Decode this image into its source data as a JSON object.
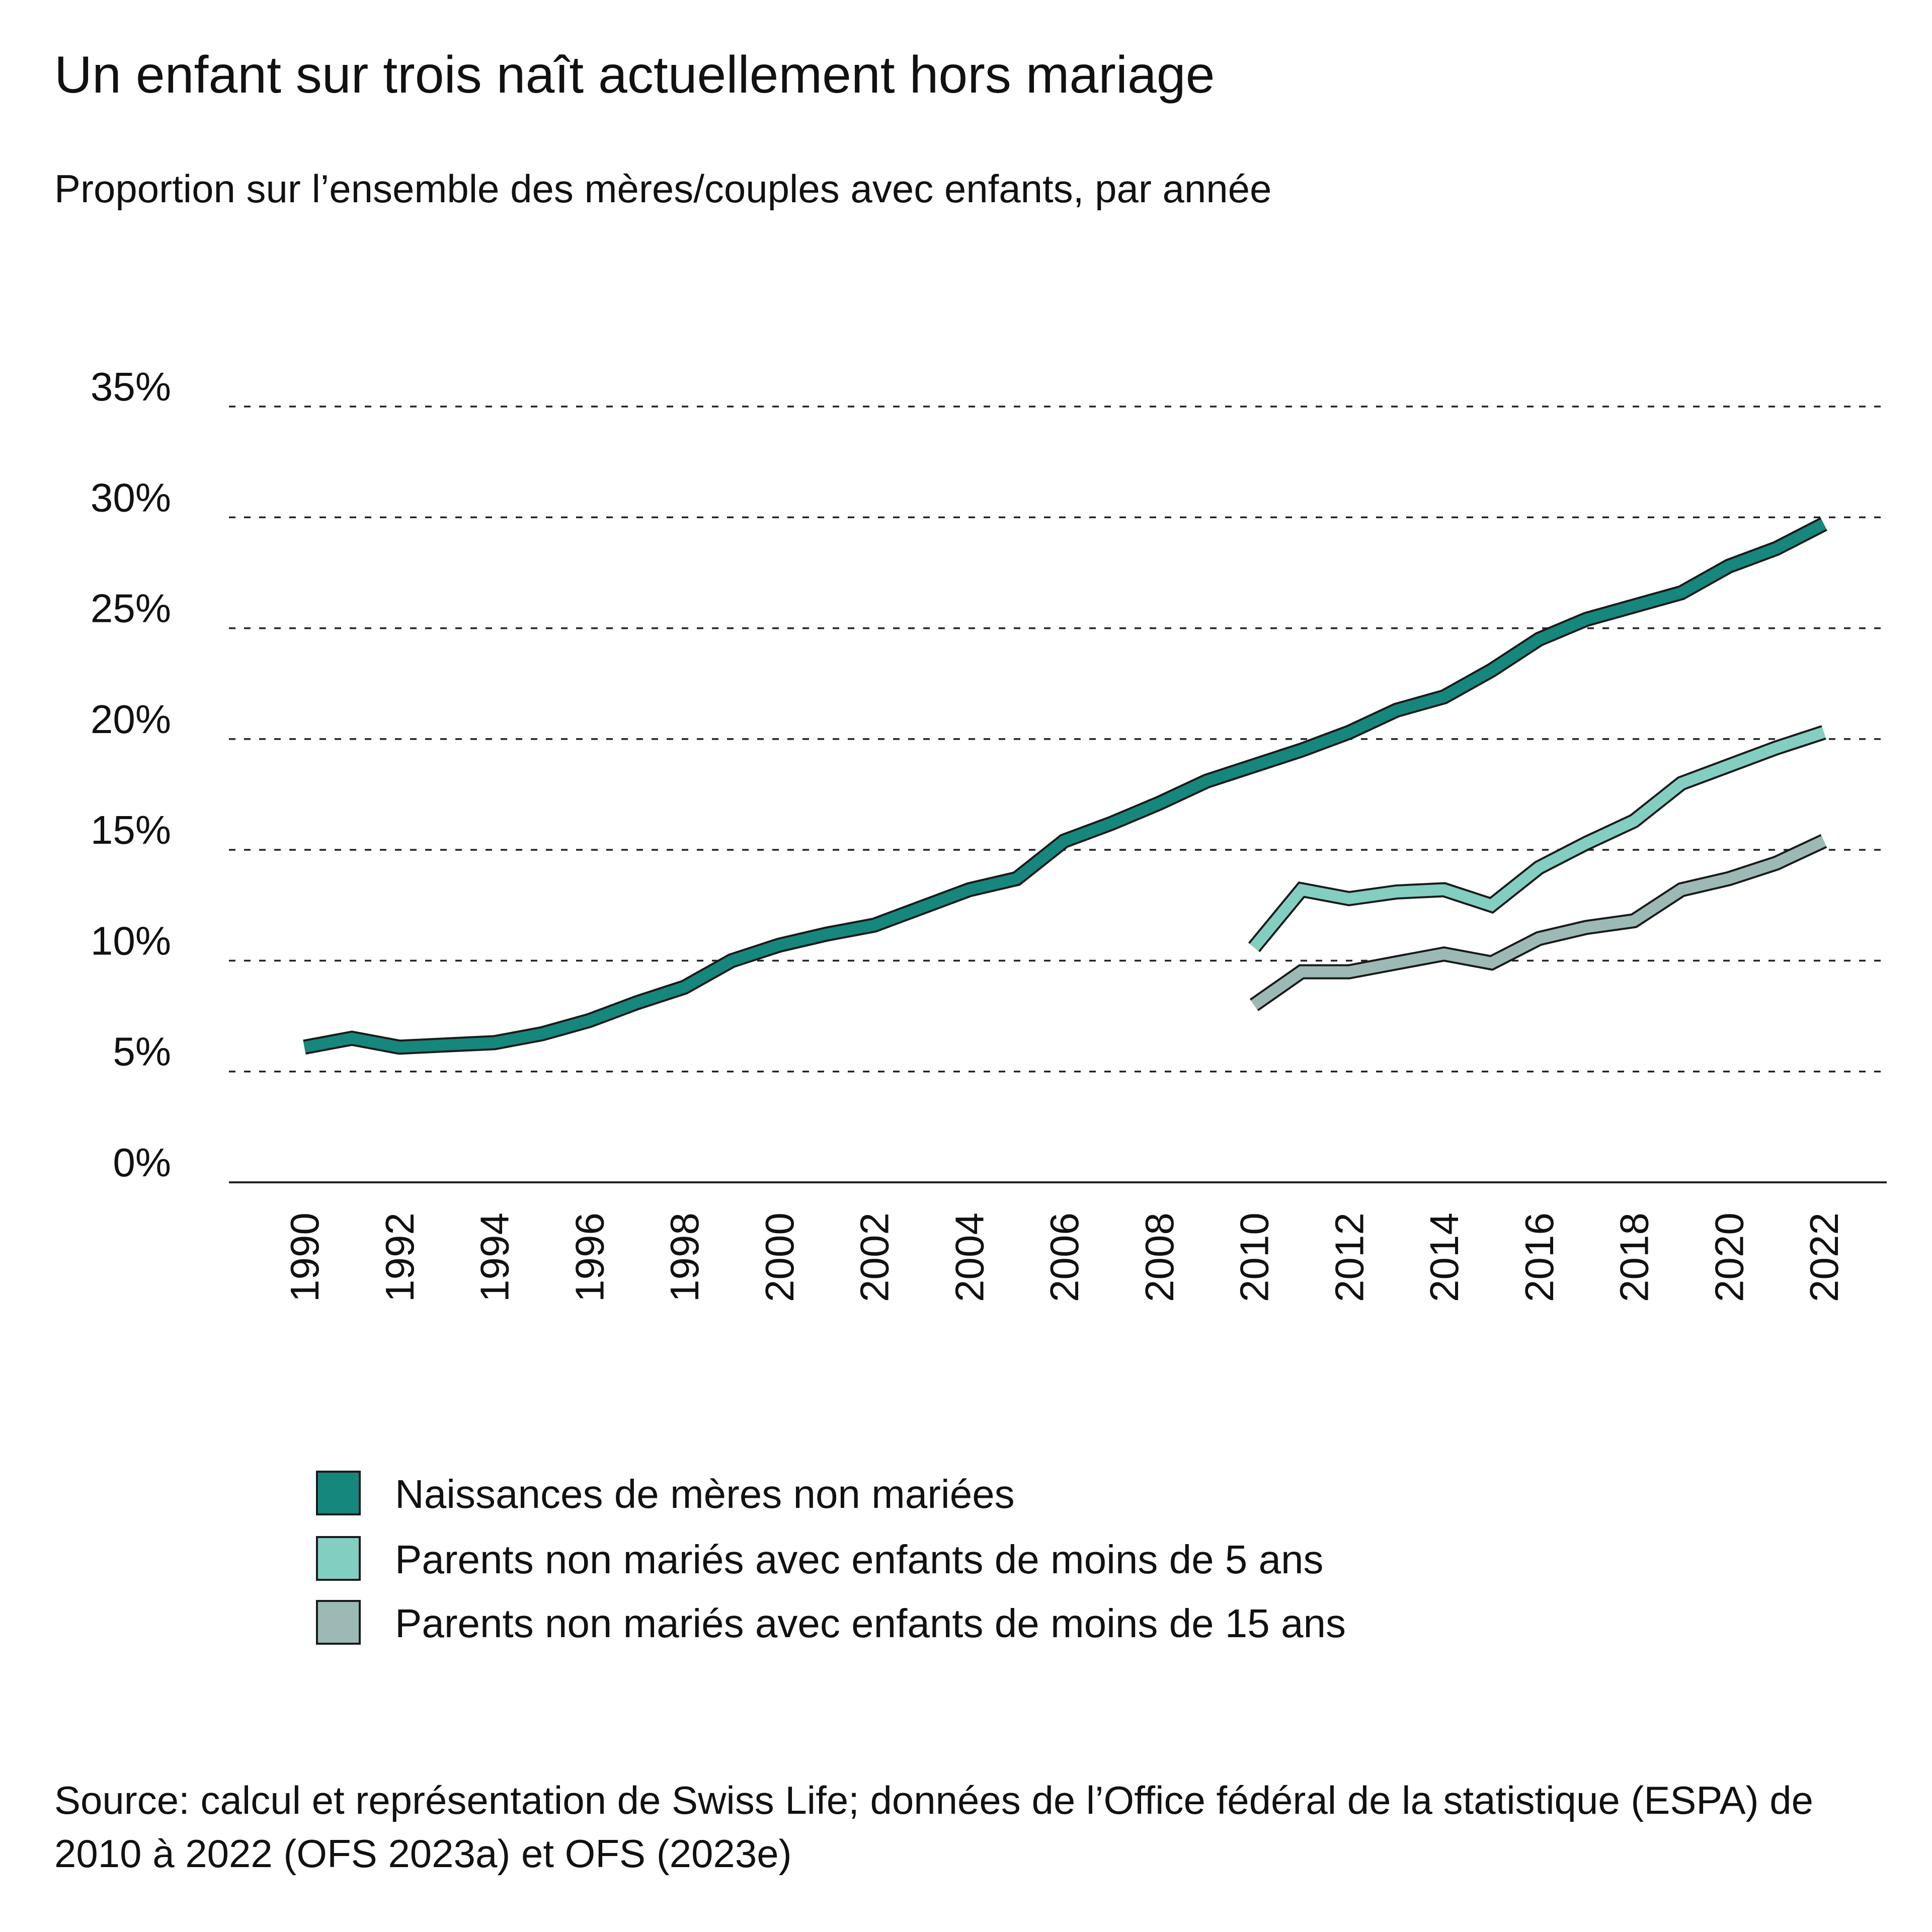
{
  "title": "Un enfant sur trois naît actuellement hors mariage",
  "subtitle": "Proportion sur l’ensemble des mères/couples avec enfants, par année",
  "source": "Source: calcul et représentation de Swiss Life; données de l’Office fédéral de la statistique (ESPA) de 2010 à 2022 (OFS 2023a) et OFS (2023e)",
  "colors": {
    "grid": "#222222",
    "axis": "#222222",
    "outline": "#1a1a1a"
  },
  "chart_data": {
    "type": "line",
    "title": "Un enfant sur trois naît actuellement hors mariage",
    "subtitle": "Proportion sur l’ensemble des mères/couples avec enfants, par année",
    "xlabel": "",
    "ylabel": "",
    "xlim": [
      1990,
      2022
    ],
    "ylim": [
      0,
      35
    ],
    "yticks": [
      0,
      5,
      10,
      15,
      20,
      25,
      30,
      35
    ],
    "ytick_labels": [
      "0%",
      "5%",
      "10%",
      "15%",
      "20%",
      "25%",
      "30%",
      "35%"
    ],
    "xticks": [
      1990,
      1992,
      1994,
      1996,
      1998,
      2000,
      2002,
      2004,
      2006,
      2008,
      2010,
      2012,
      2014,
      2016,
      2018,
      2020,
      2022
    ],
    "xtick_labels": [
      "1990",
      "1992",
      "1994",
      "1996",
      "1998",
      "2000",
      "2002",
      "2004",
      "2006",
      "2008",
      "2010",
      "2012",
      "2014",
      "2016",
      "2018",
      "2020",
      "2022"
    ],
    "grid": "horizontal dashed",
    "legend_position": "bottom",
    "series": [
      {
        "name": "Naissances de mères non mariées",
        "color": "#16877c",
        "x": [
          1990,
          1991,
          1992,
          1993,
          1994,
          1995,
          1996,
          1997,
          1998,
          1999,
          2000,
          2001,
          2002,
          2003,
          2004,
          2005,
          2006,
          2007,
          2008,
          2009,
          2010,
          2011,
          2012,
          2013,
          2014,
          2015,
          2016,
          2017,
          2018,
          2019,
          2020,
          2021,
          2022
        ],
        "values": [
          6.1,
          6.5,
          6.1,
          6.2,
          6.3,
          6.7,
          7.3,
          8.1,
          8.8,
          10.0,
          10.7,
          11.2,
          11.6,
          12.4,
          13.2,
          13.7,
          15.4,
          16.2,
          17.1,
          18.1,
          18.8,
          19.5,
          20.3,
          21.3,
          21.9,
          23.1,
          24.5,
          25.4,
          26.0,
          26.6,
          27.8,
          28.6,
          29.7
        ]
      },
      {
        "name": "Parents non mariés avec enfants de moins de 5 ans",
        "color": "#82cfc2",
        "x": [
          2010,
          2011,
          2012,
          2013,
          2014,
          2015,
          2016,
          2017,
          2018,
          2019,
          2020,
          2021,
          2022
        ],
        "values": [
          10.6,
          13.2,
          12.8,
          13.1,
          13.2,
          12.5,
          14.2,
          15.3,
          16.3,
          18.0,
          18.8,
          19.6,
          20.3
        ]
      },
      {
        "name": "Parents non mariés avec enfants de moins de 15 ans",
        "color": "#9cb9b6",
        "x": [
          2010,
          2011,
          2012,
          2013,
          2014,
          2015,
          2016,
          2017,
          2018,
          2019,
          2020,
          2021,
          2022
        ],
        "values": [
          8.0,
          9.5,
          9.5,
          9.9,
          10.3,
          9.9,
          11.0,
          11.5,
          11.8,
          13.2,
          13.7,
          14.4,
          15.4
        ]
      }
    ]
  }
}
